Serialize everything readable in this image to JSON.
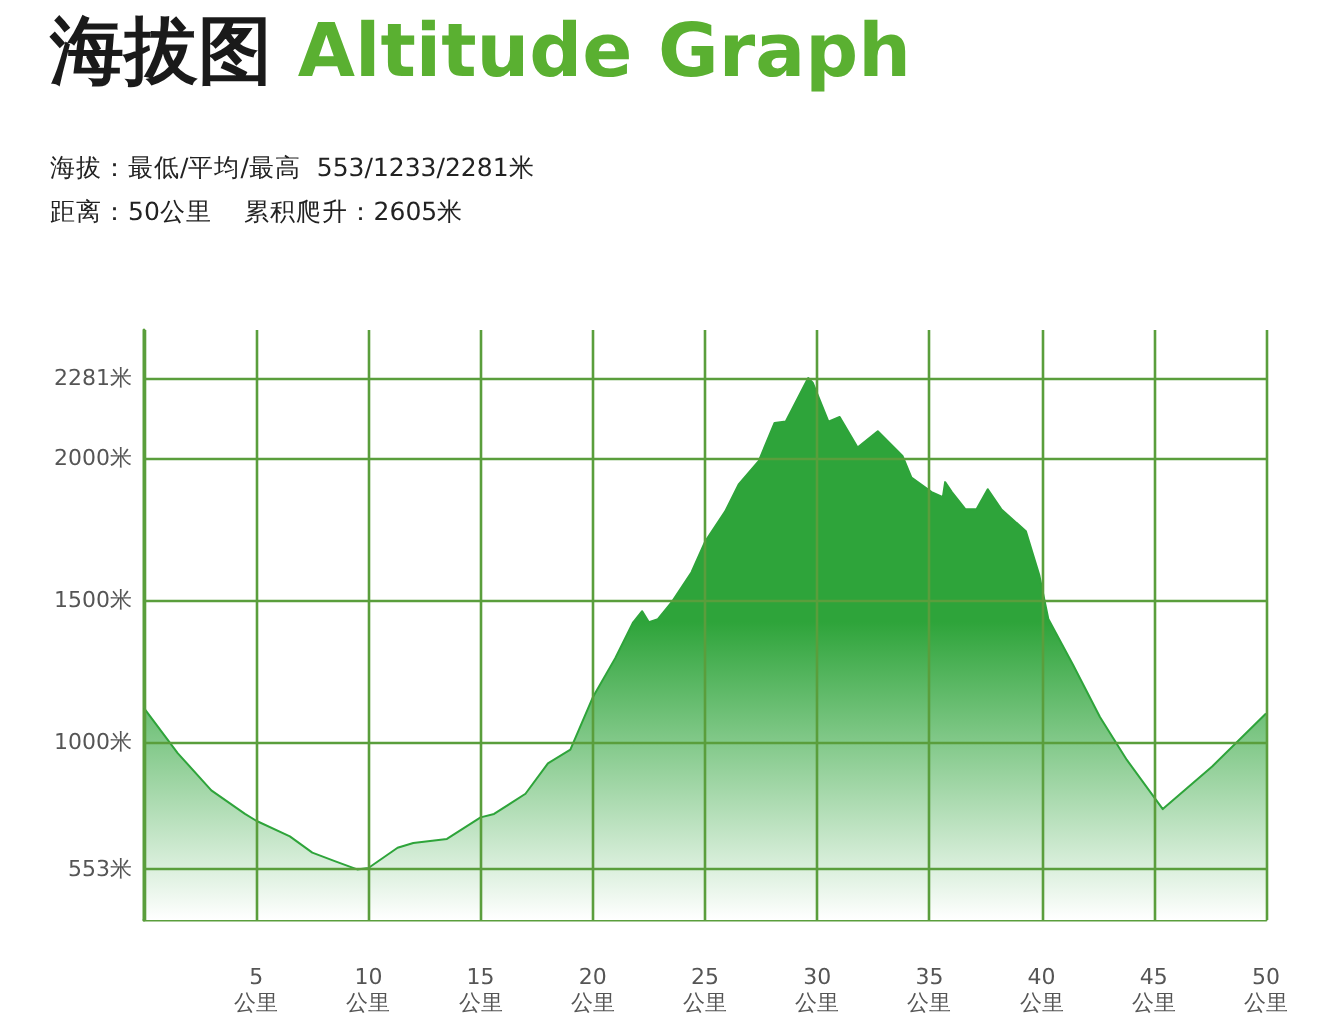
{
  "chart_data": {
    "type": "area",
    "title": "海拔图 Altitude Graph",
    "subtitle": "海拔：最低/平均/最高  553/1233/2281米",
    "annotations": [
      "距离：50公里    累积爬升：2605米"
    ],
    "x": [
      0,
      1.5,
      3,
      4.5,
      5,
      6.5,
      7.5,
      8.5,
      9.5,
      10,
      11.3,
      12,
      13.5,
      15,
      15.6,
      17,
      18,
      19,
      20,
      21,
      21.8,
      22.2,
      22.5,
      22.9,
      23.5,
      24.4,
      25,
      25.9,
      26.5,
      27.4,
      28.1,
      28.6,
      29.6,
      29.8,
      30.5,
      31,
      31.8,
      32.7,
      33.8,
      34.2,
      35.1,
      35.6,
      35.7,
      36,
      36.6,
      37.1,
      37.6,
      38.2,
      39.3,
      39.9,
      40.3,
      41.4,
      42.6,
      43.8,
      45.4,
      47.6,
      50
    ],
    "series": [
      {
        "color": "#2ea43a",
        "values": [
          1120,
          962,
          831,
          748,
          724,
          669,
          612,
          582,
          553,
          558,
          629,
          646,
          660,
          736,
          748,
          819,
          926,
          974,
          1158,
          1296,
          1422,
          1461,
          1422,
          1433,
          1491,
          1598,
          1705,
          1812,
          1907,
          1990,
          2123,
          2128,
          2281,
          2265,
          2128,
          2144,
          2037,
          2094,
          2007,
          1931,
          1880,
          1862,
          1915,
          1880,
          1820,
          1820,
          1890,
          1820,
          1742,
          1587,
          1434,
          1273,
          1089,
          938,
          765,
          915,
          1101
        ]
      }
    ],
    "xlim": [
      0,
      50
    ],
    "xticks": [
      {
        "value": 0,
        "label": null
      },
      {
        "value": 5,
        "label": "5\n公里"
      },
      {
        "value": 10,
        "label": "10\n公里"
      },
      {
        "value": 15,
        "label": "15\n公里"
      },
      {
        "value": 20,
        "label": "20\n公里"
      },
      {
        "value": 25,
        "label": "25\n公里"
      },
      {
        "value": 30,
        "label": "30\n公里"
      },
      {
        "value": 35,
        "label": "35\n公里"
      },
      {
        "value": 40,
        "label": "40\n公里"
      },
      {
        "value": 45,
        "label": "45\n公里"
      },
      {
        "value": 50,
        "label": "50\n公里"
      }
    ],
    "ylim": [
      375,
      2450
    ],
    "yticks": [
      {
        "value": 553,
        "label": "553米"
      },
      {
        "value": 1000,
        "label": "1000米"
      },
      {
        "value": 1500,
        "label": "1500米"
      },
      {
        "value": 2000,
        "label": "2000米"
      },
      {
        "value": 2281,
        "label": "2281米"
      }
    ],
    "grid": true,
    "marker": "none",
    "line_style": "solid"
  }
}
